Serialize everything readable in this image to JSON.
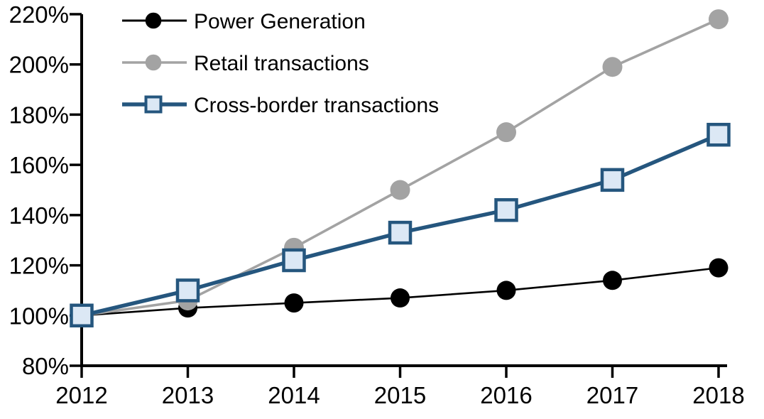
{
  "chart_data": {
    "type": "line",
    "title": "",
    "xlabel": "",
    "ylabel": "",
    "x_tick_labels": [
      "2012",
      "2013",
      "2014",
      "2015",
      "2016",
      "2017",
      "2018"
    ],
    "y_tick_values": [
      80,
      100,
      120,
      140,
      160,
      180,
      200,
      220
    ],
    "y_tick_labels": [
      "80%",
      "100%",
      "120%",
      "140%",
      "160%",
      "180%",
      "200%",
      "220%"
    ],
    "ylim": [
      80,
      220
    ],
    "grid": false,
    "legend_position": "top-left inside plot area",
    "background_color": "#ffffff",
    "axis_color": "#000000",
    "series": [
      {
        "name": "Power Generation",
        "values": [
          100,
          103,
          105,
          107,
          110,
          114,
          119
        ],
        "color": "#000000",
        "marker": "circle",
        "marker_fill": "#000000",
        "marker_radius": 13.5,
        "line_width": 2.6
      },
      {
        "name": "Retail transactions",
        "values": [
          100,
          106,
          127,
          150,
          173,
          199,
          218
        ],
        "color": "#a3a3a3",
        "marker": "circle",
        "marker_fill": "#a3a3a3",
        "marker_radius": 14,
        "line_width": 3.6
      },
      {
        "name": "Cross-border transactions",
        "values": [
          100,
          110,
          122,
          133,
          142,
          154,
          172
        ],
        "color": "#25567e",
        "marker": "square",
        "marker_fill": "#dce8f5",
        "marker_radius": 14.5,
        "line_width": 5.4
      }
    ]
  }
}
